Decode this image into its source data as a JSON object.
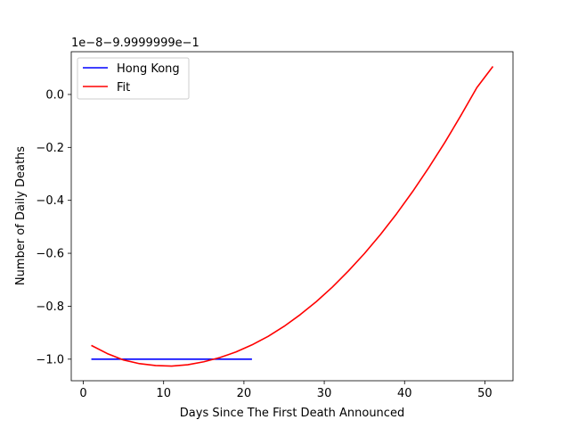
{
  "chart_data": {
    "type": "line",
    "title": "",
    "xlabel": "Days Since The First Death Announced",
    "ylabel": "Number of Daily Deaths",
    "offset_label": "1e−8−9.9999999e−1",
    "xlim": [
      -1.5,
      53.5
    ],
    "ylim": [
      -1.0815,
      0.1615
    ],
    "x_ticks": [
      0,
      10,
      20,
      30,
      40,
      50
    ],
    "x_tick_labels": [
      "0",
      "10",
      "20",
      "30",
      "40",
      "50"
    ],
    "y_ticks": [
      0.0,
      -0.2,
      -0.4,
      -0.6,
      -0.8,
      -1.0
    ],
    "y_tick_labels": [
      "0.0",
      "−0.2",
      "−0.4",
      "−0.6",
      "−0.8",
      "−1.0"
    ],
    "grid": false,
    "legend_position": "top-left",
    "series": [
      {
        "name": "Hong Kong",
        "color": "#0000ff",
        "x": [
          1,
          21
        ],
        "y": [
          -1.0,
          -1.0
        ]
      },
      {
        "name": "Fit",
        "color": "#ff0000",
        "x": [
          1,
          3,
          5,
          7,
          9,
          11,
          13,
          15,
          17,
          19,
          21,
          23,
          25,
          27,
          29,
          31,
          33,
          35,
          37,
          39,
          41,
          43,
          45,
          47,
          49,
          51
        ],
        "y": [
          -0.948,
          -0.979,
          -1.003,
          -1.017,
          -1.024,
          -1.026,
          -1.021,
          -1.01,
          -0.994,
          -0.973,
          -0.946,
          -0.914,
          -0.876,
          -0.832,
          -0.783,
          -0.728,
          -0.667,
          -0.601,
          -0.529,
          -0.451,
          -0.367,
          -0.277,
          -0.182,
          -0.08,
          0.026,
          0.106
        ]
      }
    ]
  }
}
